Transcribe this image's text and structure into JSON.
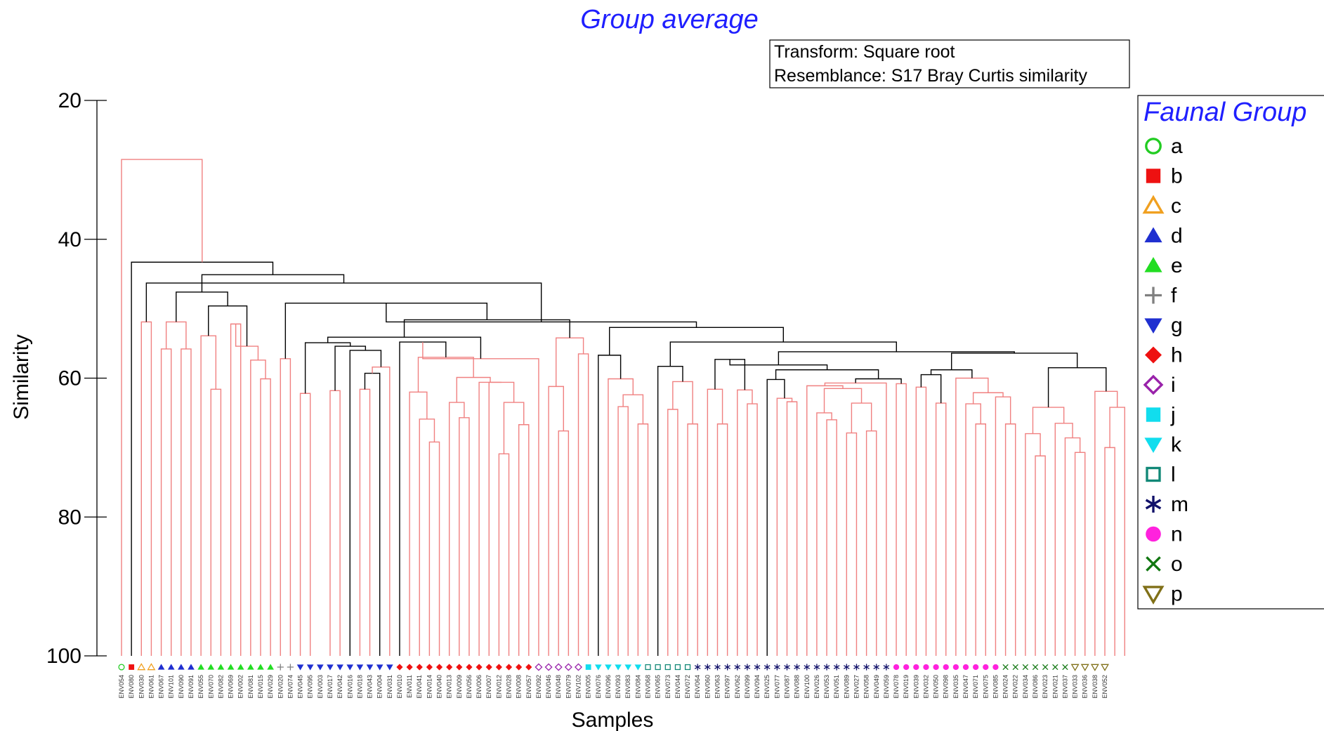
{
  "chart_data": {
    "type": "dendrogram",
    "title": "Group average",
    "info_lines": [
      "Transform: Square root",
      "Resemblance: S17 Bray Curtis similarity"
    ],
    "xlabel": "Samples",
    "ylabel": "Similarity",
    "ylim": [
      20,
      100
    ],
    "yticks": [
      "20",
      "40",
      "60",
      "80",
      "100"
    ],
    "legend_title": "Faunal Group",
    "groups": [
      {
        "label": "a",
        "symbol": "circle-open",
        "color": "#22cc22"
      },
      {
        "label": "b",
        "symbol": "square-filled",
        "color": "#ee1111"
      },
      {
        "label": "c",
        "symbol": "triangle-up-open",
        "color": "#f0a020"
      },
      {
        "label": "d",
        "symbol": "triangle-up-filled",
        "color": "#1f2fd0"
      },
      {
        "label": "e",
        "symbol": "triangle-up-filled",
        "color": "#22dd22"
      },
      {
        "label": "f",
        "symbol": "plus",
        "color": "#808080"
      },
      {
        "label": "g",
        "symbol": "triangle-down-filled",
        "color": "#1f2fd0"
      },
      {
        "label": "h",
        "symbol": "diamond-filled",
        "color": "#ee1111"
      },
      {
        "label": "i",
        "symbol": "diamond-open",
        "color": "#9922aa"
      },
      {
        "label": "j",
        "symbol": "square-filled",
        "color": "#11ddee"
      },
      {
        "label": "k",
        "symbol": "triangle-down-filled",
        "color": "#11ddee"
      },
      {
        "label": "l",
        "symbol": "square-open",
        "color": "#118877"
      },
      {
        "label": "m",
        "symbol": "asterisk",
        "color": "#11116a"
      },
      {
        "label": "n",
        "symbol": "circle-filled",
        "color": "#ff22dd"
      },
      {
        "label": "o",
        "symbol": "x",
        "color": "#117711"
      },
      {
        "label": "p",
        "symbol": "triangle-down-open",
        "color": "#807018"
      }
    ],
    "samples": [
      {
        "id": "ENV054",
        "g": "a"
      },
      {
        "id": "ENV080",
        "g": "b"
      },
      {
        "id": "ENV030",
        "g": "c"
      },
      {
        "id": "ENV061",
        "g": "c"
      },
      {
        "id": "ENV067",
        "g": "d"
      },
      {
        "id": "ENV101",
        "g": "d"
      },
      {
        "id": "ENV090",
        "g": "d"
      },
      {
        "id": "ENV091",
        "g": "d"
      },
      {
        "id": "ENV055",
        "g": "e"
      },
      {
        "id": "ENV070",
        "g": "e"
      },
      {
        "id": "ENV082",
        "g": "e"
      },
      {
        "id": "ENV069",
        "g": "e"
      },
      {
        "id": "ENV002",
        "g": "e"
      },
      {
        "id": "ENV081",
        "g": "e"
      },
      {
        "id": "ENV015",
        "g": "e"
      },
      {
        "id": "ENV029",
        "g": "e"
      },
      {
        "id": "ENV020",
        "g": "f"
      },
      {
        "id": "ENV074",
        "g": "f"
      },
      {
        "id": "ENV045",
        "g": "g"
      },
      {
        "id": "ENV095",
        "g": "g"
      },
      {
        "id": "ENV003",
        "g": "g"
      },
      {
        "id": "ENV017",
        "g": "g"
      },
      {
        "id": "ENV042",
        "g": "g"
      },
      {
        "id": "ENV016",
        "g": "g"
      },
      {
        "id": "ENV018",
        "g": "g"
      },
      {
        "id": "ENV043",
        "g": "g"
      },
      {
        "id": "ENV004",
        "g": "g"
      },
      {
        "id": "ENV031",
        "g": "g"
      },
      {
        "id": "ENV010",
        "g": "h"
      },
      {
        "id": "ENV011",
        "g": "h"
      },
      {
        "id": "ENV041",
        "g": "h"
      },
      {
        "id": "ENV014",
        "g": "h"
      },
      {
        "id": "ENV040",
        "g": "h"
      },
      {
        "id": "ENV013",
        "g": "h"
      },
      {
        "id": "ENV009",
        "g": "h"
      },
      {
        "id": "ENV056",
        "g": "h"
      },
      {
        "id": "ENV006",
        "g": "h"
      },
      {
        "id": "ENV007",
        "g": "h"
      },
      {
        "id": "ENV012",
        "g": "h"
      },
      {
        "id": "ENV028",
        "g": "h"
      },
      {
        "id": "ENV008",
        "g": "h"
      },
      {
        "id": "ENV057",
        "g": "h"
      },
      {
        "id": "ENV092",
        "g": "i"
      },
      {
        "id": "ENV046",
        "g": "i"
      },
      {
        "id": "ENV048",
        "g": "i"
      },
      {
        "id": "ENV079",
        "g": "i"
      },
      {
        "id": "ENV102",
        "g": "i"
      },
      {
        "id": "ENV005",
        "g": "j"
      },
      {
        "id": "ENV076",
        "g": "k"
      },
      {
        "id": "ENV096",
        "g": "k"
      },
      {
        "id": "ENV093",
        "g": "k"
      },
      {
        "id": "ENV083",
        "g": "k"
      },
      {
        "id": "ENV084",
        "g": "k"
      },
      {
        "id": "ENV068",
        "g": "l"
      },
      {
        "id": "ENV065",
        "g": "l"
      },
      {
        "id": "ENV073",
        "g": "l"
      },
      {
        "id": "ENV044",
        "g": "l"
      },
      {
        "id": "ENV072",
        "g": "l"
      },
      {
        "id": "ENV064",
        "g": "m"
      },
      {
        "id": "ENV060",
        "g": "m"
      },
      {
        "id": "ENV063",
        "g": "m"
      },
      {
        "id": "ENV097",
        "g": "m"
      },
      {
        "id": "ENV062",
        "g": "m"
      },
      {
        "id": "ENV099",
        "g": "m"
      },
      {
        "id": "ENV094",
        "g": "m"
      },
      {
        "id": "ENV025",
        "g": "m"
      },
      {
        "id": "ENV077",
        "g": "m"
      },
      {
        "id": "ENV087",
        "g": "m"
      },
      {
        "id": "ENV088",
        "g": "m"
      },
      {
        "id": "ENV100",
        "g": "m"
      },
      {
        "id": "ENV026",
        "g": "m"
      },
      {
        "id": "ENV053",
        "g": "m"
      },
      {
        "id": "ENV051",
        "g": "m"
      },
      {
        "id": "ENV089",
        "g": "m"
      },
      {
        "id": "ENV027",
        "g": "m"
      },
      {
        "id": "ENV058",
        "g": "m"
      },
      {
        "id": "ENV049",
        "g": "m"
      },
      {
        "id": "ENV059",
        "g": "m"
      },
      {
        "id": "ENV078",
        "g": "n"
      },
      {
        "id": "ENV019",
        "g": "n"
      },
      {
        "id": "ENV039",
        "g": "n"
      },
      {
        "id": "ENV032",
        "g": "n"
      },
      {
        "id": "ENV050",
        "g": "n"
      },
      {
        "id": "ENV098",
        "g": "n"
      },
      {
        "id": "ENV035",
        "g": "n"
      },
      {
        "id": "ENV047",
        "g": "n"
      },
      {
        "id": "ENV071",
        "g": "n"
      },
      {
        "id": "ENV075",
        "g": "n"
      },
      {
        "id": "ENV085",
        "g": "n"
      },
      {
        "id": "ENV024",
        "g": "o"
      },
      {
        "id": "ENV022",
        "g": "o"
      },
      {
        "id": "ENV034",
        "g": "o"
      },
      {
        "id": "ENV086",
        "g": "o"
      },
      {
        "id": "ENV023",
        "g": "o"
      },
      {
        "id": "ENV021",
        "g": "o"
      },
      {
        "id": "ENV037",
        "g": "o"
      },
      {
        "id": "ENV033",
        "g": "p"
      },
      {
        "id": "ENV036",
        "g": "p"
      },
      {
        "id": "ENV038",
        "g": "p"
      },
      {
        "id": "ENV052",
        "g": "p"
      }
    ],
    "merges": [
      {
        "a": 9,
        "b": 10,
        "s": 61.6
      },
      {
        "a": "s0",
        "b": 8,
        "s": 53.9
      },
      {
        "a": 11,
        "b": 12,
        "s": 52.2
      },
      {
        "a": 14,
        "b": 15,
        "s": 60.1
      },
      {
        "a": 13,
        "b": "s3",
        "s": 57.4
      },
      {
        "a": "s4",
        "b": "s2",
        "s": 55.4
      },
      {
        "a": "s1",
        "b": "s5",
        "s": 49.6
      },
      {
        "a": 4,
        "b": 5,
        "s": 55.8
      },
      {
        "a": 6,
        "b": 7,
        "s": 55.8
      },
      {
        "a": "s7",
        "b": "s8",
        "s": 51.9
      },
      {
        "a": "s9",
        "b": "s6",
        "s": 47.6
      },
      {
        "a": 2,
        "b": 3,
        "s": 51.9
      },
      {
        "a": 16,
        "b": 17,
        "s": 57.2
      },
      {
        "a": 18,
        "b": 19,
        "s": 62.2
      },
      {
        "a": 24,
        "b": 25,
        "s": 61.6
      },
      {
        "a": "s14",
        "b": 26,
        "s": 59.3
      },
      {
        "a": 27,
        "b": "s15",
        "s": 58.4
      },
      {
        "a": "s16",
        "b": 23,
        "s": 56.0
      },
      {
        "a": 21,
        "b": 22,
        "s": 61.8
      },
      {
        "a": "s17",
        "b": "s18",
        "s": 55.4
      },
      {
        "a": "s13",
        "b": "s19",
        "s": 54.9
      },
      {
        "a": 31,
        "b": 32,
        "s": 69.2
      },
      {
        "a": "s21",
        "b": 30,
        "s": 65.9
      },
      {
        "a": 29,
        "b": "s22",
        "s": 62.0
      },
      {
        "a": 34,
        "b": 35,
        "s": 65.7
      },
      {
        "a": "s24",
        "b": 33,
        "s": 63.5
      },
      {
        "a": 38,
        "b": 39,
        "s": 70.9
      },
      {
        "a": 40,
        "b": 41,
        "s": 66.7
      },
      {
        "a": "s26",
        "b": "s27",
        "s": 63.5
      },
      {
        "a": "s28",
        "b": 37,
        "s": 60.6
      },
      {
        "a": 36,
        "b": "s29",
        "s": 60.6
      },
      {
        "a": "s25",
        "b": "s30",
        "s": 59.9
      },
      {
        "a": "s23",
        "b": "s31",
        "s": 57.0
      },
      {
        "a": 28,
        "b": "s32",
        "s": 54.8
      },
      {
        "a": "s33",
        "b": 42,
        "s": 57.2
      },
      {
        "a": "s20",
        "b": "s34",
        "s": 54.1
      },
      {
        "a": 44,
        "b": 45,
        "s": 67.6
      },
      {
        "a": 43,
        "b": "s36",
        "s": 61.2
      },
      {
        "a": 46,
        "b": 47,
        "s": 56.5
      },
      {
        "a": "s37",
        "b": "s38",
        "s": 54.2
      },
      {
        "a": "s35",
        "b": "s39",
        "s": 51.6
      },
      {
        "a": "s12",
        "b": "s40",
        "s": 49.2
      },
      {
        "a": 50,
        "b": 51,
        "s": 64.1
      },
      {
        "a": 52,
        "b": 53,
        "s": 66.6
      },
      {
        "a": "s42",
        "b": "s43",
        "s": 62.4
      },
      {
        "a": 49,
        "b": "s44",
        "s": 60.1
      },
      {
        "a": 48,
        "b": "s45",
        "s": 56.7
      },
      {
        "a": 55,
        "b": 56,
        "s": 64.5
      },
      {
        "a": 57,
        "b": 58,
        "s": 66.6
      },
      {
        "a": "s47",
        "b": "s48",
        "s": 60.5
      },
      {
        "a": 54,
        "b": "s49",
        "s": 58.3
      },
      {
        "a": 60,
        "b": 61,
        "s": 66.6
      },
      {
        "a": 59,
        "b": "s51",
        "s": 61.6
      },
      {
        "a": 63,
        "b": 64,
        "s": 63.7
      },
      {
        "a": 62,
        "b": "s53",
        "s": 61.7
      },
      {
        "a": "s52",
        "b": "s54",
        "s": 57.3
      },
      {
        "a": 67,
        "b": 68,
        "s": 63.4
      },
      {
        "a": 66,
        "b": "s56",
        "s": 62.9
      },
      {
        "a": 65,
        "b": "s57",
        "s": 60.2
      },
      {
        "a": 71,
        "b": 72,
        "s": 66.0
      },
      {
        "a": 70,
        "b": "s59",
        "s": 65.0
      },
      {
        "a": 73,
        "b": 74,
        "s": 67.9
      },
      {
        "a": 75,
        "b": 76,
        "s": 67.6
      },
      {
        "a": "s61",
        "b": "s62",
        "s": 63.6
      },
      {
        "a": "s60",
        "b": "s63",
        "s": 61.5
      },
      {
        "a": 69,
        "b": "s64",
        "s": 61.1
      },
      {
        "a": "s65",
        "b": 77,
        "s": 60.7
      },
      {
        "a": 78,
        "b": 79,
        "s": 60.8
      },
      {
        "a": "s66",
        "b": "s67",
        "s": 60.1
      },
      {
        "a": "s58",
        "b": "s68",
        "s": 58.8
      },
      {
        "a": "s55",
        "b": "s69",
        "s": 58.1
      },
      {
        "a": 80,
        "b": 81,
        "s": 61.3
      },
      {
        "a": 82,
        "b": 83,
        "s": 63.6
      },
      {
        "a": 86,
        "b": 87,
        "s": 66.6
      },
      {
        "a": 85,
        "b": "s73",
        "s": 63.7
      },
      {
        "a": 89,
        "b": 90,
        "s": 66.6
      },
      {
        "a": 88,
        "b": "s75",
        "s": 62.7
      },
      {
        "a": "s74",
        "b": "s76",
        "s": 62.1
      },
      {
        "a": 84,
        "b": "s77",
        "s": 60.0
      },
      {
        "a": "s71",
        "b": "s72",
        "s": 59.5
      },
      {
        "a": "s79",
        "b": "s78",
        "s": 58.8
      },
      {
        "a": 92,
        "b": 93,
        "s": 71.2
      },
      {
        "a": 91,
        "b": "s81",
        "s": 68.0
      },
      {
        "a": 96,
        "b": 97,
        "s": 70.7
      },
      {
        "a": 95,
        "b": "s83",
        "s": 68.6
      },
      {
        "a": 94,
        "b": "s84",
        "s": 66.5
      },
      {
        "a": "s82",
        "b": "s85",
        "s": 64.2
      },
      {
        "a": 99,
        "b": 100,
        "s": 70.0
      },
      {
        "a": 101,
        "b": "s87",
        "s": 64.2
      },
      {
        "a": 98,
        "b": "s88",
        "s": 61.9
      },
      {
        "a": "s86",
        "b": "s89",
        "s": 58.5
      },
      {
        "a": "s80",
        "b": "s90",
        "s": 56.4
      },
      {
        "a": "s70",
        "b": "s91",
        "s": 56.2
      },
      {
        "a": "s50",
        "b": "s92",
        "s": 54.8
      },
      {
        "a": "s46",
        "b": "s93",
        "s": 52.7
      },
      {
        "a": "s41",
        "b": "s94",
        "s": 51.9
      },
      {
        "a": "s11",
        "b": "s95",
        "s": 46.3
      },
      {
        "a": "s10",
        "b": "s96",
        "s": 45.1
      },
      {
        "a": 1,
        "b": "s97",
        "s": 43.3
      },
      {
        "a": 0,
        "b": "s98",
        "s": 28.5
      }
    ],
    "significant_color": "#f08080",
    "nonsignificant_color": "#000000",
    "nonsignificant_merges": [
      6,
      10,
      15,
      17,
      19,
      20,
      33,
      35,
      40,
      41,
      46,
      50,
      55,
      58,
      68,
      69,
      70,
      79,
      80,
      90,
      91,
      92,
      93,
      94,
      95,
      96,
      97,
      98
    ]
  }
}
